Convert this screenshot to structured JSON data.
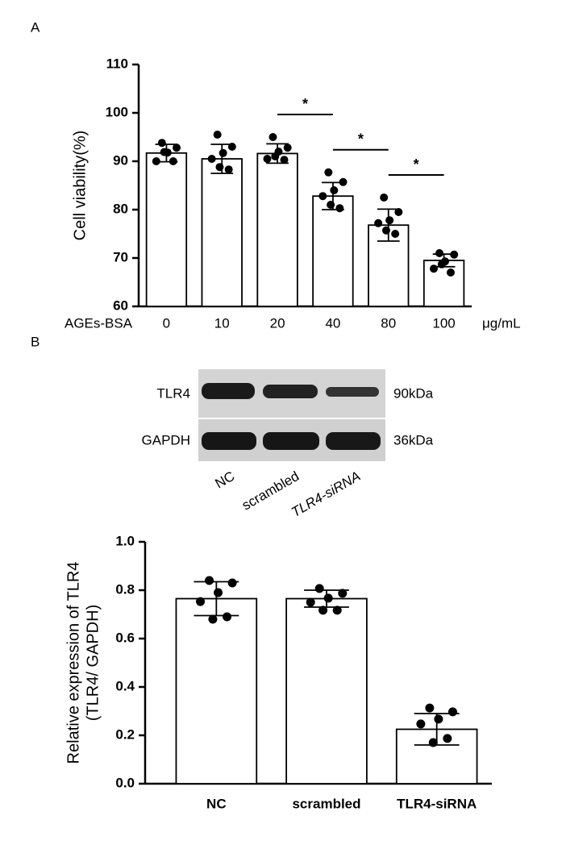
{
  "panels": [
    "A",
    "B"
  ],
  "chart_data": [
    {
      "type": "bar",
      "ylabel": "Cell viability(%)",
      "xlabel": "AGEs-BSA",
      "xunit": "μg/mL",
      "categories": [
        "0",
        "10",
        "20",
        "40",
        "80",
        "100"
      ],
      "values": [
        91.7,
        90.5,
        91.6,
        82.8,
        76.8,
        69.5
      ],
      "errors": [
        1.8,
        3.0,
        2.0,
        2.8,
        3.3,
        1.3
      ],
      "points": [
        [
          93.8,
          92.8,
          91.8,
          90.0,
          90.0,
          91.9
        ],
        [
          95.5,
          93.0,
          91.7,
          90.5,
          88.3,
          88.8
        ],
        [
          95.0,
          92.8,
          92.0,
          90.5,
          90.3,
          91.0
        ],
        [
          87.7,
          85.7,
          84.0,
          82.8,
          80.3,
          81.0
        ],
        [
          82.5,
          79.5,
          77.8,
          77.2,
          75.0,
          75.7
        ],
        [
          71.0,
          70.7,
          69.3,
          67.8,
          67.0,
          68.7
        ]
      ],
      "color": "#ffffff",
      "ylim": [
        60,
        110
      ],
      "yticks": [
        60,
        70,
        80,
        90,
        100,
        110
      ],
      "annotations": [
        {
          "text": "*",
          "between": [
            2,
            3
          ]
        },
        {
          "text": "*",
          "between": [
            3,
            4
          ]
        },
        {
          "text": "*",
          "between": [
            4,
            5
          ]
        }
      ]
    },
    {
      "type": "bar",
      "ylabel": [
        "Relative expression of TLR4",
        "(TLR4/ GAPDH)"
      ],
      "categories": [
        "NC",
        "scrambled",
        "TLR4-siRNA"
      ],
      "values": [
        0.765,
        0.765,
        0.225
      ],
      "errors": [
        0.07,
        0.035,
        0.065
      ],
      "points": [
        [
          0.84,
          0.83,
          0.79,
          0.753,
          0.69,
          0.68
        ],
        [
          0.807,
          0.787,
          0.767,
          0.75,
          0.717,
          0.717
        ],
        [
          0.313,
          0.297,
          0.267,
          0.247,
          0.187,
          0.17
        ]
      ],
      "color": "#ffffff",
      "ylim": [
        0,
        1
      ],
      "yticks": [
        {
          "value": 0,
          "label": "0.0"
        },
        0.2,
        0.4,
        0.6,
        0.8,
        {
          "value": 1,
          "label": "1.0"
        }
      ]
    }
  ],
  "blot": {
    "rows": [
      {
        "label": "TLR4",
        "size": "90kDa"
      },
      {
        "label": "GAPDH",
        "size": "36kDa"
      }
    ],
    "lanes": [
      "NC",
      "scrambled",
      "TLR4-siRNA"
    ]
  }
}
